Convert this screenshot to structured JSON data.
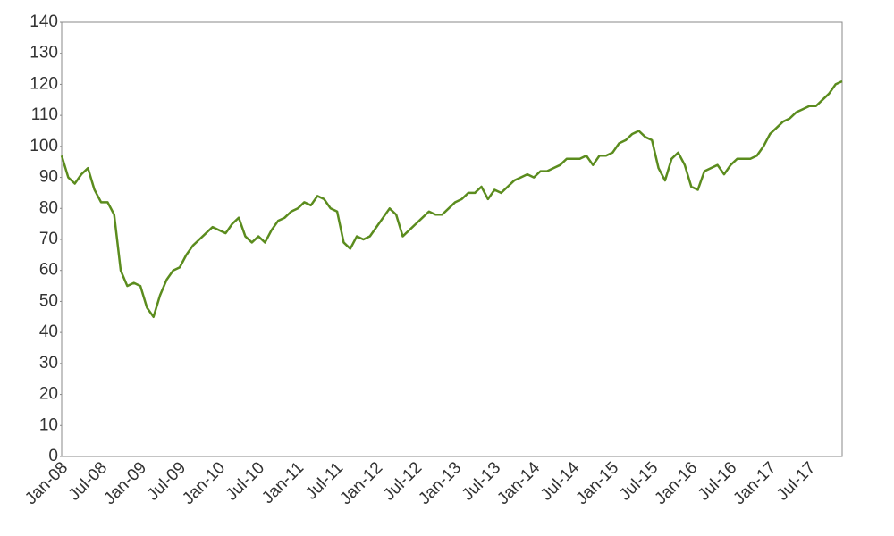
{
  "chart_data": {
    "type": "line",
    "categories": [
      "Jan-08",
      null,
      null,
      null,
      null,
      null,
      "Jul-08",
      null,
      null,
      null,
      null,
      null,
      "Jan-09",
      null,
      null,
      null,
      null,
      null,
      "Jul-09",
      null,
      null,
      null,
      null,
      null,
      "Jan-10",
      null,
      null,
      null,
      null,
      null,
      "Jul-10",
      null,
      null,
      null,
      null,
      null,
      "Jan-11",
      null,
      null,
      null,
      null,
      null,
      "Jul-11",
      null,
      null,
      null,
      null,
      null,
      "Jan-12",
      null,
      null,
      null,
      null,
      null,
      "Jul-12",
      null,
      null,
      null,
      null,
      null,
      "Jan-13",
      null,
      null,
      null,
      null,
      null,
      "Jul-13",
      null,
      null,
      null,
      null,
      null,
      "Jan-14",
      null,
      null,
      null,
      null,
      null,
      "Jul-14",
      null,
      null,
      null,
      null,
      null,
      "Jan-15",
      null,
      null,
      null,
      null,
      null,
      "Jul-15",
      null,
      null,
      null,
      null,
      null,
      "Jan-16",
      null,
      null,
      null,
      null,
      null,
      "Jul-16",
      null,
      null,
      null,
      null,
      null,
      "Jan-17",
      null,
      null,
      null,
      null,
      null,
      "Jul-17",
      null,
      null,
      null,
      null,
      null
    ],
    "values": [
      97,
      90,
      88,
      91,
      93,
      86,
      82,
      82,
      78,
      60,
      55,
      56,
      55,
      48,
      45,
      52,
      57,
      60,
      61,
      65,
      68,
      70,
      72,
      74,
      73,
      72,
      75,
      77,
      71,
      69,
      71,
      69,
      73,
      76,
      77,
      79,
      80,
      82,
      81,
      84,
      83,
      80,
      79,
      69,
      67,
      71,
      70,
      71,
      74,
      77,
      80,
      78,
      71,
      73,
      75,
      77,
      79,
      78,
      78,
      80,
      82,
      83,
      85,
      85,
      87,
      83,
      86,
      85,
      87,
      89,
      90,
      91,
      90,
      92,
      92,
      93,
      94,
      96,
      96,
      96,
      97,
      94,
      97,
      97,
      98,
      101,
      102,
      104,
      105,
      103,
      102,
      93,
      89,
      96,
      98,
      94,
      87,
      86,
      92,
      93,
      94,
      91,
      94,
      96,
      96,
      96,
      97,
      100,
      104,
      106,
      108,
      109,
      111,
      112,
      113,
      113,
      115,
      117,
      120,
      121
    ],
    "color": "#5b8c1e",
    "ylim": [
      0,
      140
    ],
    "yticks": [
      0,
      10,
      20,
      30,
      40,
      50,
      60,
      70,
      80,
      90,
      100,
      110,
      120,
      130,
      140
    ],
    "grid": false
  }
}
